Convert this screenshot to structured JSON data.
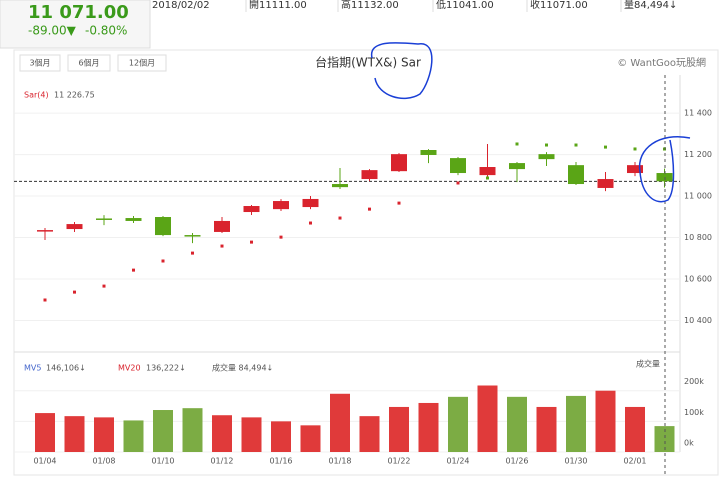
{
  "header": {
    "price": "11 071.00",
    "change": "-89.00▼",
    "change_pct": "-0.80%",
    "date": "2018/02/02",
    "open": "開11111.00",
    "high": "高11132.00",
    "low": "低11041.00",
    "close": "收11071.00",
    "volume": "量84,494↓"
  },
  "toolbar": {
    "buttons": [
      "3個月",
      "6個月",
      "12個月"
    ],
    "brand": "© WantGoo玩股網"
  },
  "chart_data": {
    "type": "candlestick",
    "title": "台指期(WTX&) Sar",
    "categories": [
      "01/04",
      null,
      "01/08",
      null,
      "01/10",
      null,
      "01/12",
      null,
      "01/16",
      null,
      "01/18",
      null,
      "01/22",
      null,
      "01/24",
      null,
      "01/26",
      null,
      "01/30",
      null,
      "02/01",
      null
    ],
    "open": [
      10830,
      10841,
      10892,
      10894,
      10899,
      10812,
      10827,
      10923,
      10937,
      10947,
      11058,
      11082,
      11120,
      11222,
      11183,
      11101,
      11159,
      11202,
      11149,
      11039,
      11111,
      11111
    ],
    "close": [
      10836,
      10865,
      10889,
      10880,
      10812,
      10807,
      10880,
      10952,
      10976,
      10986,
      11043,
      11125,
      11202,
      11198,
      11111,
      11140,
      11130,
      11178,
      11058,
      11082,
      11149,
      11071
    ],
    "high": [
      10846,
      10875,
      10908,
      10904,
      10904,
      10822,
      10899,
      10957,
      10985,
      11000,
      11135,
      11130,
      11207,
      11226,
      11188,
      11251,
      11164,
      11212,
      11164,
      11116,
      11164,
      11132
    ],
    "low": [
      10788,
      10827,
      10860,
      10870,
      10807,
      10773,
      10822,
      10909,
      10928,
      10937,
      11034,
      11072,
      11116,
      11159,
      11101,
      11087,
      11067,
      11145,
      11053,
      11024,
      11096,
      11041
    ],
    "up_color": "#d9232d",
    "down_color": "#5aa516",
    "ylim": [
      10258,
      11463
    ],
    "yticks": [
      {
        "value": 10400,
        "label": "10 400"
      },
      {
        "value": 10600,
        "label": "10 600"
      },
      {
        "value": 10800,
        "label": "10 800"
      },
      {
        "value": 11000,
        "label": "11 000"
      },
      {
        "value": 11200,
        "label": "11 200"
      },
      {
        "value": 11400,
        "label": "11 400"
      }
    ],
    "sar": {
      "name": "Sar(4)",
      "last_label": "11 226.75",
      "values": [
        10499,
        10537,
        10566,
        10643,
        10687,
        10725,
        10759,
        10778,
        10802,
        10870,
        10894,
        10937,
        10966,
        null,
        11063,
        11087,
        11251,
        11246,
        11246,
        11236,
        11227,
        11226.75
      ]
    },
    "volume": {
      "title": "成交量",
      "mv5": "MV5",
      "mv5_label": "146,106↓",
      "mv20": "MV20",
      "mv20_label": "136,222↓",
      "vol_label": "成交量 84,494↓",
      "ylim": [
        0,
        310000
      ],
      "yticks": [
        {
          "value": 0,
          "label": "0k"
        },
        {
          "value": 100000,
          "label": "100k"
        },
        {
          "value": 200000,
          "label": "200k"
        }
      ],
      "values": [
        127000,
        117000,
        113000,
        103000,
        137000,
        143000,
        120000,
        113000,
        100000,
        87000,
        190000,
        117000,
        147000,
        160000,
        180000,
        217000,
        180000,
        147000,
        183000,
        200000,
        147000,
        84494
      ],
      "colors": [
        "#e03a3a",
        "#e03a3a",
        "#e03a3a",
        "#7cac44",
        "#7cac44",
        "#7cac44",
        "#e03a3a",
        "#e03a3a",
        "#e03a3a",
        "#e03a3a",
        "#e03a3a",
        "#e03a3a",
        "#e03a3a",
        "#e03a3a",
        "#7cac44",
        "#e03a3a",
        "#7cac44",
        "#e03a3a",
        "#7cac44",
        "#e03a3a",
        "#e03a3a",
        "#7cac44"
      ]
    }
  }
}
